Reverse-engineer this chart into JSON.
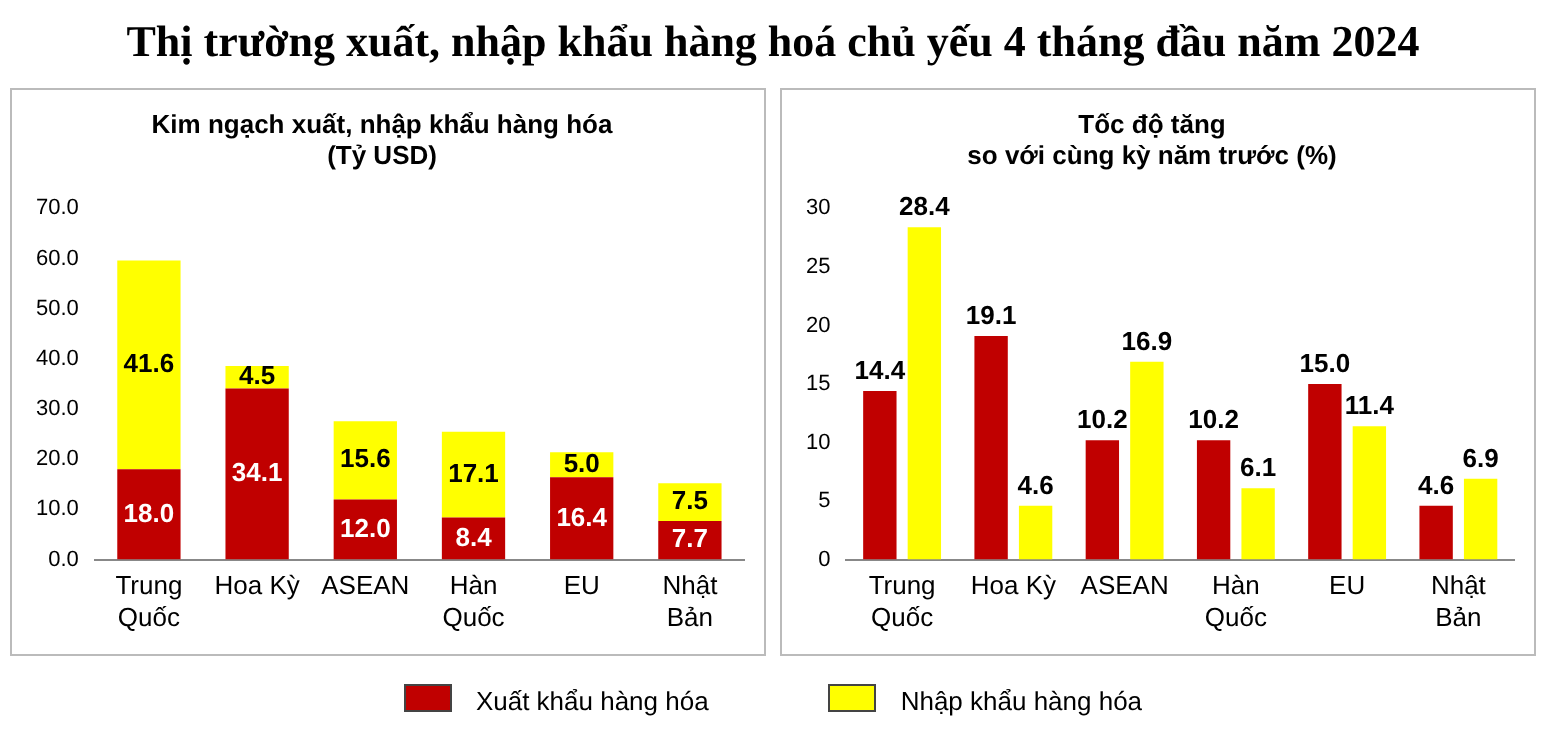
{
  "chart_data": [
    {
      "type": "bar",
      "title": "Thị trường xuất, nhập khẩu hàng hoá chủ yếu 4 tháng đầu năm 2024",
      "subtitle": "Kim ngạch xuất, nhập khẩu hàng hóa\n(Tỷ USD)",
      "categories": [
        "Trung\nQuốc",
        "Hoa Kỳ",
        "ASEAN",
        "Hàn\nQuốc",
        "EU",
        "Nhật\nBản"
      ],
      "stacked": true,
      "legend": "bottom",
      "grid": false,
      "ylim": [
        0,
        70
      ],
      "yticks": [
        {
          "value": 0,
          "label": "0.0"
        },
        {
          "value": 10,
          "label": "10.0"
        },
        {
          "value": 20,
          "label": "20.0"
        },
        {
          "value": 30,
          "label": "30.0"
        },
        {
          "value": 40,
          "label": "40.0"
        },
        {
          "value": 50,
          "label": "50.0"
        },
        {
          "value": 60,
          "label": "60.0"
        },
        {
          "value": 70,
          "label": "70.0"
        }
      ],
      "series": [
        {
          "name": "Xuất khẩu hàng hóa",
          "color": "#c00000",
          "values": [
            18.0,
            34.1,
            12.0,
            8.4,
            16.4,
            7.7
          ],
          "value_labels": [
            "18.0",
            "34.1",
            "12.0",
            "8.4",
            "16.4",
            "7.7"
          ]
        },
        {
          "name": "Nhập khẩu hàng hóa",
          "color": "#ffff00",
          "values": [
            41.6,
            4.5,
            15.6,
            17.1,
            5.0,
            7.5
          ],
          "value_labels": [
            "41.6",
            "4.5",
            "15.6",
            "17.1",
            "5.0",
            "7.5"
          ]
        }
      ]
    },
    {
      "type": "bar",
      "title": "Tốc độ tăng\nso với cùng kỳ năm trước (%)",
      "categories": [
        "Trung\nQuốc",
        "Hoa Kỳ",
        "ASEAN",
        "Hàn\nQuốc",
        "EU",
        "Nhật\nBản"
      ],
      "grid": false,
      "ylim": [
        0,
        30
      ],
      "yticks": [
        0,
        5,
        10,
        15,
        20,
        25,
        30
      ],
      "series": [
        {
          "color": "#c00000",
          "values": [
            14.4,
            19.1,
            10.2,
            10.2,
            15.0,
            4.6
          ],
          "value_labels": [
            "14.4",
            "19.1",
            "10.2",
            "10.2",
            "15.0",
            "4.6"
          ]
        },
        {
          "color": "#ffff00",
          "values": [
            28.4,
            4.6,
            16.9,
            6.1,
            11.4,
            6.9
          ],
          "value_labels": [
            "28.4",
            "4.6",
            "16.9",
            "6.1",
            "11.4",
            "6.9"
          ]
        }
      ]
    }
  ]
}
